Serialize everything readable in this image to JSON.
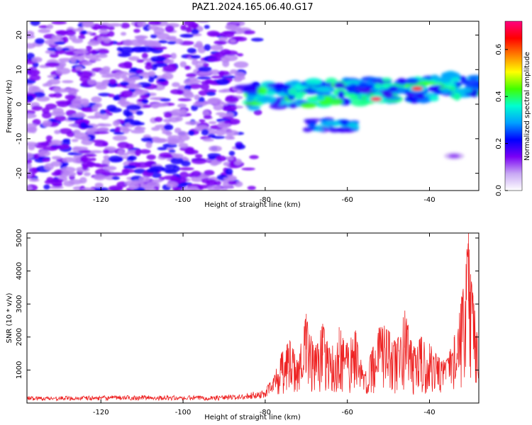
{
  "chart_data": [
    {
      "type": "heatmap",
      "title": "PAZ1.2024.165.06.40.G17",
      "xlabel": "Height of straight line (km)",
      "ylabel": "Frequency (Hz)",
      "xlim": [
        -138,
        -28
      ],
      "ylim": [
        -25,
        24
      ],
      "xticks": [
        -120,
        -100,
        -80,
        -60,
        -40
      ],
      "yticks": [
        20,
        10,
        0,
        -10,
        -20
      ],
      "colorbar": {
        "label": "Normalized spectral amplitude",
        "range": [
          0.0,
          0.72
        ],
        "ticks": [
          0.0,
          0.2,
          0.4,
          0.6
        ],
        "colors": [
          "#ffffff",
          "#c8a8f4",
          "#7a00f5",
          "#0000ff",
          "#00a0ff",
          "#00ffd0",
          "#40ff00",
          "#ffff00",
          "#ff8000",
          "#ff0000",
          "#ff0080"
        ]
      },
      "features": [
        {
          "x_range": [
            -138,
            -80
          ],
          "y_range": [
            -25,
            24
          ],
          "level": 0.1
        },
        {
          "x_range": [
            -86,
            -28
          ],
          "y_center": 2,
          "level": 0.35
        },
        {
          "x_range": [
            -70,
            -58
          ],
          "y_center": -6,
          "level": 0.25
        },
        {
          "x": -53,
          "y": 1.5,
          "level": 0.7
        },
        {
          "x": -43,
          "y": 4.5,
          "level": 0.65
        },
        {
          "x": -34,
          "y": -15,
          "level": 0.12
        }
      ]
    },
    {
      "type": "line",
      "xlabel": "Height of straight line (km)",
      "ylabel": "SNR (10 * v/v)",
      "xlim": [
        -138,
        -28
      ],
      "ylim": [
        0,
        5150
      ],
      "xticks": [
        -120,
        -100,
        -80,
        -60,
        -40
      ],
      "yticks": [
        1000,
        2000,
        3000,
        4000,
        5000
      ],
      "series": [
        {
          "color": "#ee2222",
          "x": [
            -138,
            -130,
            -120,
            -110,
            -100,
            -90,
            -85,
            -80,
            -78,
            -76,
            -74,
            -72,
            -70,
            -68,
            -66,
            -64,
            -62,
            -60,
            -58,
            -56,
            -54,
            -52,
            -50,
            -48,
            -46,
            -44,
            -42,
            -40,
            -38,
            -36,
            -34,
            -32,
            -30.5,
            -30,
            -29,
            -28
          ],
          "y": [
            150,
            150,
            160,
            170,
            160,
            170,
            200,
            300,
            650,
            1500,
            1900,
            1200,
            2700,
            1600,
            2400,
            1500,
            2300,
            1800,
            2200,
            800,
            1600,
            2300,
            2200,
            1800,
            2800,
            1600,
            2000,
            1800,
            1400,
            1200,
            2000,
            3200,
            5150,
            3900,
            2800,
            1500
          ]
        }
      ]
    }
  ]
}
